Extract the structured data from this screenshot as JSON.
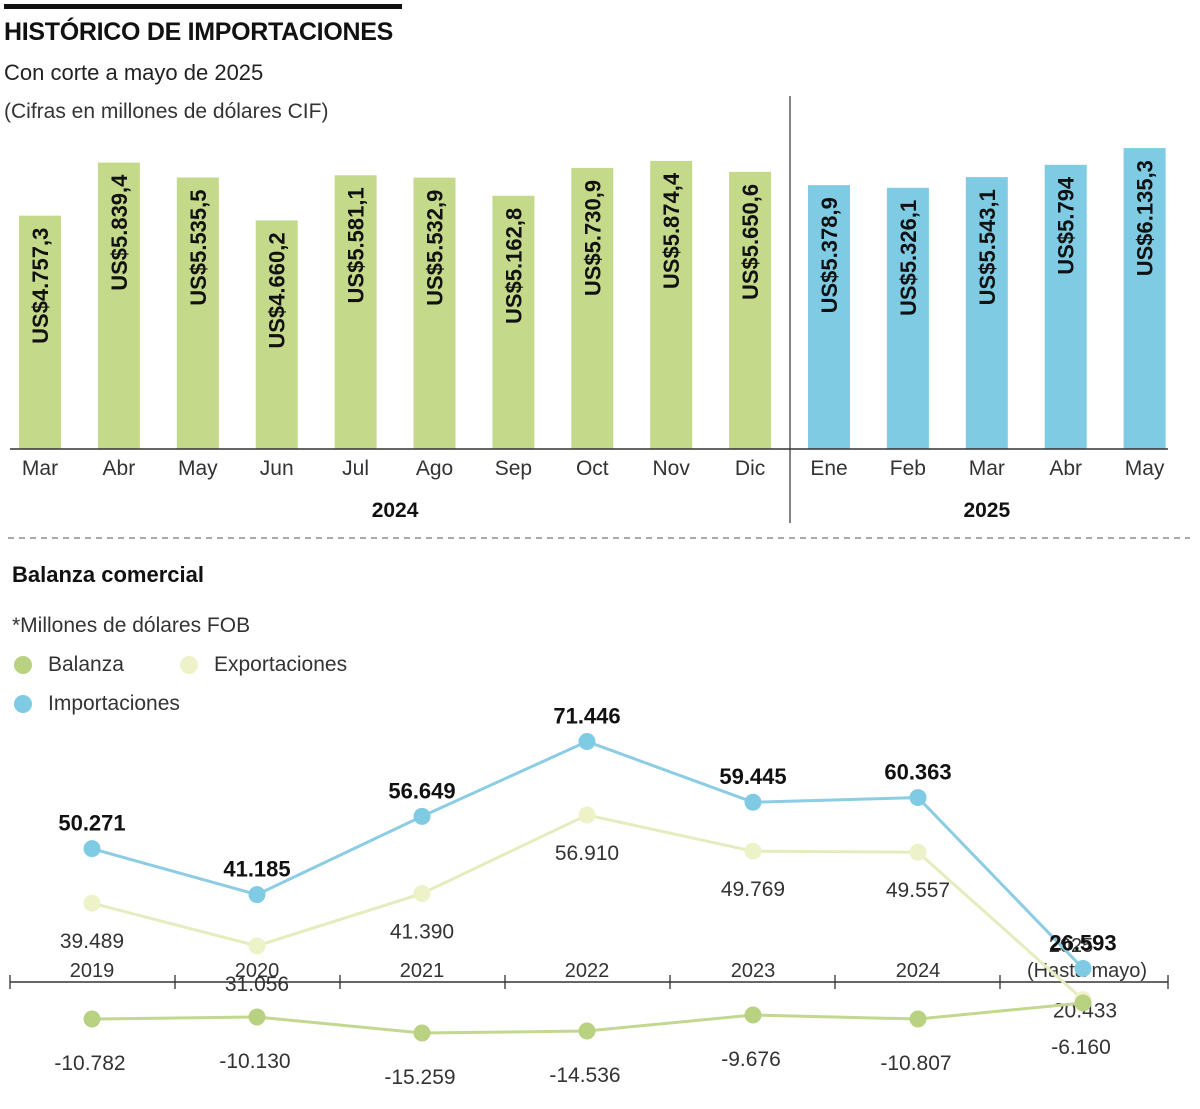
{
  "title": "HISTÓRICO DE IMPORTACIONES",
  "subtitle": "Con corte a mayo de 2025",
  "units": "(Cifras en millones de dólares CIF)",
  "colors": {
    "bar_2024": "#c5d98a",
    "bar_2025": "#7ecbe3",
    "balanza": "#b9d282",
    "exportaciones": "#eef2c9",
    "importaciones": "#7ecbe3",
    "importaciones_line": "#8ccde4",
    "exportaciones_line": "#e6ecbd",
    "balanza_line": "#c2d88e"
  },
  "chart_data": [
    {
      "type": "bar",
      "groups": [
        {
          "label": "2024",
          "color_key": "bar_2024",
          "categories": [
            "Mar",
            "Abr",
            "May",
            "Jun",
            "Jul",
            "Ago",
            "Sep",
            "Oct",
            "Nov",
            "Dic"
          ],
          "values": [
            4757.3,
            5839.4,
            5535.5,
            4660.2,
            5581.1,
            5532.9,
            5162.8,
            5730.9,
            5874.4,
            5650.6
          ],
          "labels": [
            "US$4.757,3",
            "US$5.839,4",
            "US$5.535,5",
            "US$4.660,2",
            "US$5.581,1",
            "US$5.532,9",
            "US$5.162,8",
            "US$5.730,9",
            "US$5.874,4",
            "US$5.650,6"
          ]
        },
        {
          "label": "2025",
          "color_key": "bar_2025",
          "categories": [
            "Ene",
            "Feb",
            "Mar",
            "Abr",
            "May"
          ],
          "values": [
            5378.9,
            5326.1,
            5543.1,
            5794,
            6135.3
          ],
          "labels": [
            "US$5.378,9",
            "US$5.326,1",
            "US$5.543,1",
            "US$5.794",
            "US$6.135,3"
          ]
        }
      ]
    },
    {
      "type": "line",
      "title": "Balanza comercial",
      "units_note": "*Millones de dólares FOB",
      "legend": [
        "Balanza",
        "Exportaciones",
        "Importaciones"
      ],
      "x": [
        "2019",
        "2020",
        "2021",
        "2022",
        "2023",
        "2024",
        "2025"
      ],
      "x_sublabel_last": "(Hasta mayo)",
      "series": [
        {
          "name": "Importaciones",
          "values": [
            50271,
            41185,
            56649,
            71446,
            59445,
            60363,
            26593
          ],
          "labels": [
            "50.271",
            "41.185",
            "56.649",
            "71.446",
            "59.445",
            "60.363",
            "26.593"
          ]
        },
        {
          "name": "Exportaciones",
          "values": [
            39489,
            31056,
            41390,
            56910,
            49769,
            49557,
            20433
          ],
          "labels": [
            "39.489",
            "31.056",
            "41.390",
            "56.910",
            "49.769",
            "49.557",
            "20.433"
          ]
        },
        {
          "name": "Balanza",
          "values": [
            -10782,
            -10130,
            -15259,
            -14536,
            -9676,
            -10807,
            -6160
          ],
          "labels": [
            "-10.782",
            "-10.130",
            "-15.259",
            "-14.536",
            "-9.676",
            "-10.807",
            "-6.160"
          ]
        }
      ]
    }
  ]
}
